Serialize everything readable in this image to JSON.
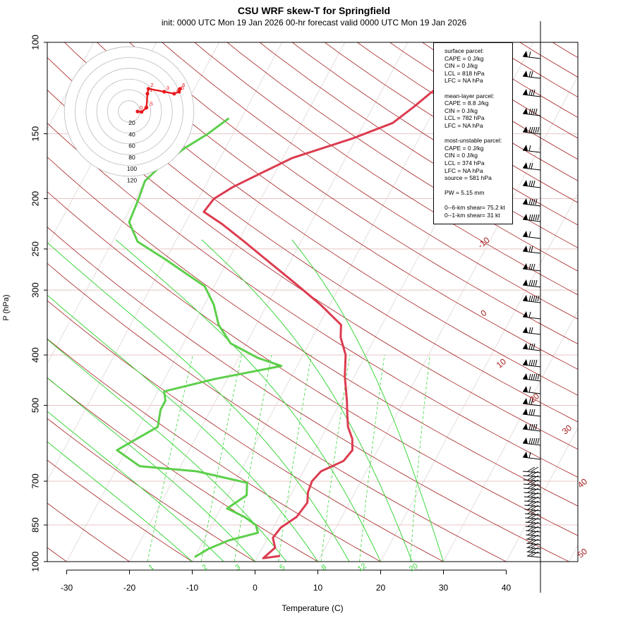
{
  "title": "CSU WRF skew-T for Springfield",
  "subtitle": "init: 0000 UTC Mon 19 Jan 2026     00-hr forecast valid 0000 UTC Mon 19 Jan 2026",
  "stats": {
    "surface_header": "surface parcel:",
    "surface_cape": "CAPE = 0 J/kg",
    "surface_cin": "CIN = 0 J/kg",
    "surface_lcl": "LCL = 818 hPa",
    "surface_lfc": "LFC = NA hPa",
    "ml_header": "mean-layer parcel:",
    "ml_cape": "CAPE = 8.8 J/kg",
    "ml_cin": "CIN = 0 J/kg",
    "ml_lcl": "LCL = 782 hPa",
    "ml_lfc": "LFC = NA hPa",
    "mu_header": "most-unstable parcel:",
    "mu_cape": "CAPE = 0 J/kg",
    "mu_cin": "CIN = 0 J/kg",
    "mu_lcl": "LCL = 374 hPa",
    "mu_lfc": "LFC = NA hPa",
    "mu_source": "source = 581 hPa",
    "pw": "PW =  5.15 mm",
    "shear_06": "0--6-km shear= 75.2 kt",
    "shear_01": "0--1-km shear= 31 kt"
  },
  "chart_data": {
    "type": "line",
    "title": "CSU WRF skew-T for Springfield",
    "xlabel": "Temperature (C)",
    "ylabel": "P (hPa)",
    "xlim": [
      -33,
      52
    ],
    "ylim": [
      1000,
      100
    ],
    "y_scale": "log",
    "x_ticks": [
      -30,
      -20,
      -10,
      0,
      10,
      20,
      30,
      40
    ],
    "y_ticks": [
      100,
      150,
      200,
      250,
      300,
      400,
      500,
      700,
      850,
      1000
    ],
    "isotherm_labels": [
      {
        "label": "-10",
        "value": -10
      },
      {
        "label": "0",
        "value": 0
      },
      {
        "label": "10",
        "value": 10
      },
      {
        "label": "20",
        "value": 20
      },
      {
        "label": "30",
        "value": 30
      },
      {
        "label": "40",
        "value": 40
      },
      {
        "label": "50",
        "value": 50
      }
    ],
    "mixing_ratio_labels": [
      "1",
      "2",
      "3",
      "5",
      "8",
      "12",
      "20"
    ],
    "series": [
      {
        "role": "temperature",
        "color": "#dc3c50",
        "points": [
          [
            3.5,
            975
          ],
          [
            1,
            985
          ],
          [
            2,
            940
          ],
          [
            0.8,
            900
          ],
          [
            1.2,
            860
          ],
          [
            2.8,
            820
          ],
          [
            3.3,
            770
          ],
          [
            2.5,
            735
          ],
          [
            2.2,
            700
          ],
          [
            2.8,
            670
          ],
          [
            5.5,
            640
          ],
          [
            6.0,
            610
          ],
          [
            5.0,
            580
          ],
          [
            3.3,
            550
          ],
          [
            2.1,
            520
          ],
          [
            0.9,
            490
          ],
          [
            -1.5,
            440
          ],
          [
            -3.2,
            400
          ],
          [
            -5.5,
            370
          ],
          [
            -6.5,
            350
          ],
          [
            -11.5,
            320
          ],
          [
            -17.6,
            290
          ],
          [
            -24.5,
            260
          ],
          [
            -29,
            242
          ],
          [
            -34,
            224
          ],
          [
            -38,
            212
          ],
          [
            -37.5,
            200
          ],
          [
            -35.5,
            190
          ],
          [
            -32,
            178
          ],
          [
            -28.5,
            167
          ],
          [
            -24,
            159
          ],
          [
            -20.5,
            153
          ],
          [
            -15.5,
            143
          ],
          [
            -13.5,
            133
          ],
          [
            -12,
            125
          ],
          [
            -10,
            117
          ],
          [
            -8.5,
            111
          ],
          [
            -6.5,
            104
          ]
        ]
      },
      {
        "role": "dewpoint",
        "color": "#5ccf4a",
        "points": [
          [
            -10,
            980
          ],
          [
            -8.5,
            945
          ],
          [
            -6,
            910
          ],
          [
            -2,
            880
          ],
          [
            -3,
            850
          ],
          [
            -5.5,
            820
          ],
          [
            -9,
            790
          ],
          [
            -7,
            745
          ],
          [
            -8,
            705
          ],
          [
            -17,
            670
          ],
          [
            -26.5,
            655
          ],
          [
            -31.5,
            610
          ],
          [
            -27,
            550
          ],
          [
            -28,
            510
          ],
          [
            -28,
            490
          ],
          [
            -29,
            470
          ],
          [
            -22,
            445
          ],
          [
            -12.5,
            420
          ],
          [
            -17,
            405
          ],
          [
            -22.5,
            380
          ],
          [
            -26,
            350
          ],
          [
            -28.5,
            320
          ],
          [
            -31.5,
            295
          ],
          [
            -40,
            262
          ],
          [
            -46,
            242
          ],
          [
            -49,
            222
          ],
          [
            -49.5,
            200
          ],
          [
            -50,
            185
          ],
          [
            -49,
            175
          ],
          [
            -46.5,
            160
          ],
          [
            -44,
            150
          ],
          [
            -42,
            140
          ]
        ]
      }
    ],
    "hodograph": {
      "ring_labels": [
        "20",
        "40",
        "60",
        "80",
        "100",
        "120"
      ],
      "points": [
        {
          "label": "0",
          "u": 0,
          "v": 0
        },
        {
          "label": "1",
          "u": 4,
          "v": 0.5
        },
        {
          "label": ".5",
          "u": 9,
          "v": -4
        },
        {
          "label": "1",
          "u": 10,
          "v": -18
        },
        {
          "label": "2",
          "u": 11,
          "v": -23
        },
        {
          "label": "3",
          "u": 27,
          "v": -20
        },
        {
          "label": "4",
          "u": 37,
          "v": -18
        },
        {
          "label": "5",
          "u": 42,
          "v": -20
        },
        {
          "label": "6",
          "u": 43,
          "v": -23
        }
      ]
    }
  }
}
